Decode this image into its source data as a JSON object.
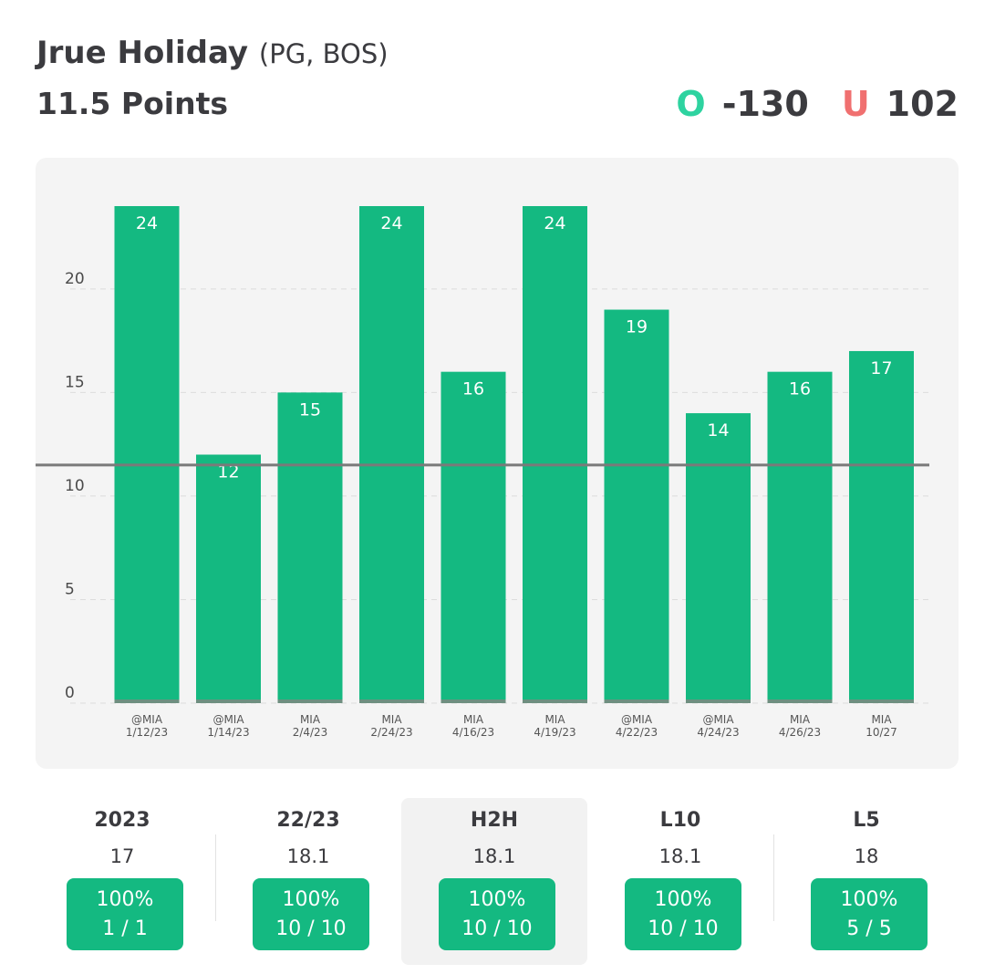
{
  "header": {
    "player_name": "Jrue Holiday",
    "player_meta": "(PG, BOS)",
    "prop": "11.5 Points",
    "over_label": "O",
    "over_odds": "-130",
    "under_label": "U",
    "under_odds": "102"
  },
  "colors": {
    "bar": "#14b981",
    "over": "#2ed3a0",
    "under": "#f07070",
    "line": "#7a7a7a"
  },
  "chart_data": {
    "type": "bar",
    "categories": [
      "@MIA 1/12/23",
      "@MIA 1/14/23",
      "MIA 2/4/23",
      "MIA 2/24/23",
      "MIA 4/16/23",
      "MIA 4/19/23",
      "@MIA 4/22/23",
      "@MIA 4/24/23",
      "MIA 4/26/23",
      "MIA 10/27"
    ],
    "opponents": [
      "@MIA",
      "@MIA",
      "MIA",
      "MIA",
      "MIA",
      "MIA",
      "@MIA",
      "@MIA",
      "MIA",
      "MIA"
    ],
    "dates": [
      "1/12/23",
      "1/14/23",
      "2/4/23",
      "2/24/23",
      "4/16/23",
      "4/19/23",
      "4/22/23",
      "4/24/23",
      "4/26/23",
      "10/27"
    ],
    "values": [
      24,
      12,
      15,
      24,
      16,
      24,
      19,
      14,
      16,
      17
    ],
    "line": 11.5,
    "yticks": [
      0,
      5,
      10,
      15,
      20
    ],
    "ylim": [
      0,
      24
    ],
    "title": "",
    "xlabel": "",
    "ylabel": ""
  },
  "stats": [
    {
      "label": "2023",
      "avg": "17",
      "pct": "100%",
      "record": "1 / 1",
      "active": false
    },
    {
      "label": "22/23",
      "avg": "18.1",
      "pct": "100%",
      "record": "10 / 10",
      "active": false
    },
    {
      "label": "H2H",
      "avg": "18.1",
      "pct": "100%",
      "record": "10 / 10",
      "active": true
    },
    {
      "label": "L10",
      "avg": "18.1",
      "pct": "100%",
      "record": "10 / 10",
      "active": false
    },
    {
      "label": "L5",
      "avg": "18",
      "pct": "100%",
      "record": "5 / 5",
      "active": false
    }
  ]
}
